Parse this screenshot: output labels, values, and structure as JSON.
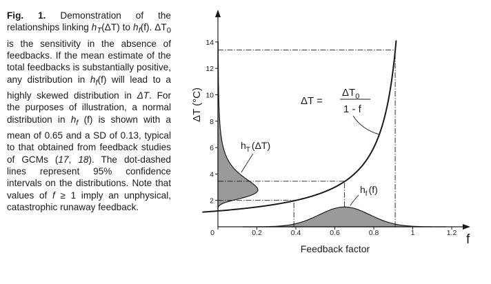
{
  "caption": {
    "label": "Fig. 1.",
    "text_1": " Demonstration of the relationships linking ",
    "hT": "h",
    "hT_sub": "T",
    "text_2": "(ΔT) to ",
    "hf": "h",
    "hf_sub": "f",
    "text_3": "(f). ΔT",
    "dT0_sub": "0",
    "text_4": " is the sensitivity in the absence of feedbacks. If the mean estimate of the total feedbacks is substantially positive, any distribution in ",
    "hf2": "h",
    "hf2_sub": "f",
    "text_5": "(f) will lead to a highly skewed distribution in ",
    "dT": "ΔT",
    "text_6": ". For the purposes of illustration, a normal distribution in ",
    "hf3": "h",
    "hf3_sub": "f",
    "text_7": " (f) is shown with a mean of 0.65 and a SD of 0.13, typical to that obtained from feedback studies of GCMs (",
    "ref1": "17",
    "text_8": ", ",
    "ref2": "18",
    "text_9": "). The dot-dashed lines represent 95% confidence intervals on the distributions. Note that values of ",
    "f_geq": "f",
    "text_10": " ≥ 1 imply an unphysical, catastrophic runaway feedback."
  },
  "chart_data": {
    "type": "line",
    "title": "",
    "xlabel": "Feedback factor",
    "xlabel_symbol": "f",
    "ylabel": "ΔT (°C)",
    "xlim": [
      -0.08,
      1.25
    ],
    "ylim": [
      0,
      15
    ],
    "x_ticks": [
      "0",
      "0.2",
      "0.4",
      "0.6",
      "0.8",
      "1",
      "1.2"
    ],
    "x_tick_values": [
      0,
      0.2,
      0.4,
      0.6,
      0.8,
      1.0,
      1.2
    ],
    "y_ticks": [
      "0",
      "2",
      "4",
      "6",
      "8",
      "10",
      "12",
      "14"
    ],
    "y_tick_values": [
      0,
      2,
      4,
      6,
      8,
      10,
      12,
      14
    ],
    "dT0": 1.2,
    "curve_x_range": [
      -0.08,
      0.915
    ],
    "hf": {
      "mean": 0.65,
      "sd": 0.13,
      "peak_height_degC": 1.5,
      "label": "h",
      "label_sub": "f",
      "label_arg": "(f)"
    },
    "hT": {
      "peak_width_f": 0.205,
      "label": "h",
      "label_sub": "T",
      "label_arg": "(ΔT)"
    },
    "ci_f": [
      0.39,
      0.91
    ],
    "ci_dT": [
      2.0,
      3.45,
      13.4
    ],
    "equation": {
      "lhs": "ΔT =",
      "numerator": "ΔT",
      "numerator_sub": "0",
      "denominator": "1 - f"
    },
    "grid": false,
    "legend": "none"
  }
}
